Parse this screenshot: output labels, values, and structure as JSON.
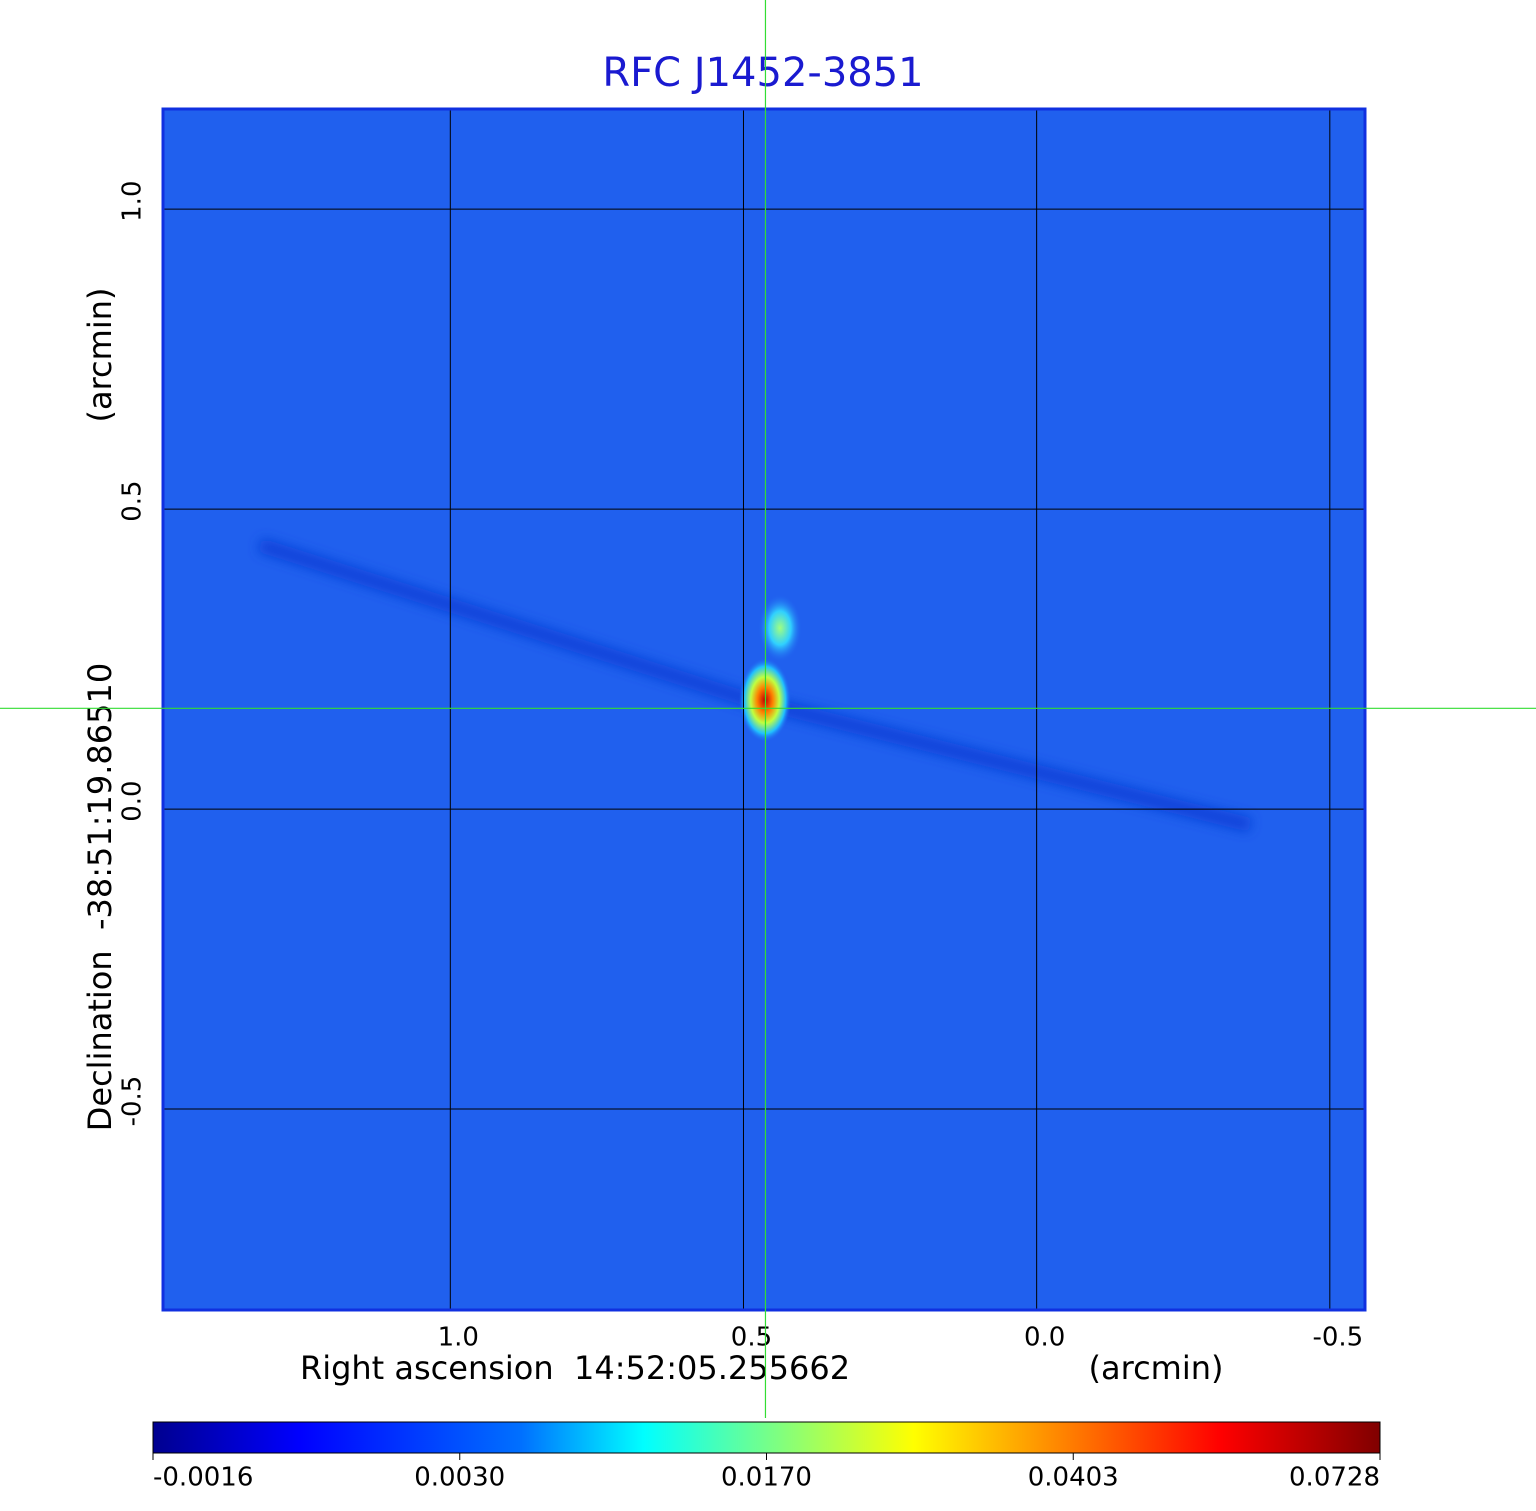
{
  "chart_data": {
    "type": "image",
    "title": "RFC J1452-3851",
    "xlabel": "Right ascension  14:52:05.255662",
    "xunit": "(arcmin)",
    "ylabel": "Declination  -38:51:19.86510",
    "yunit": "(arcmin)",
    "xlim": [
      1.49,
      -0.56
    ],
    "ylim": [
      -0.835,
      1.167
    ],
    "xticks": [
      {
        "value": 1,
        "label": "1.0"
      },
      0.5,
      {
        "value": 0,
        "label": "0.0"
      },
      -0.5
    ],
    "yticks": [
      {
        "value": 1,
        "label": "1.0"
      },
      0.5,
      {
        "value": 0,
        "label": "0.0"
      },
      -0.5
    ],
    "grid": true,
    "crosshair": {
      "x": 0.4625,
      "y": 0.168,
      "color": "#33dd33"
    },
    "colorbar_ticks": [
      {
        "value": -0.0016,
        "label": "-0.0016"
      },
      {
        "value": 0.003,
        "label": "0.0030"
      },
      {
        "value": 0.017,
        "label": "0.0170"
      },
      {
        "value": 0.0403,
        "label": "0.0403"
      },
      {
        "value": 0.0728,
        "label": "0.0728"
      }
    ]
  }
}
